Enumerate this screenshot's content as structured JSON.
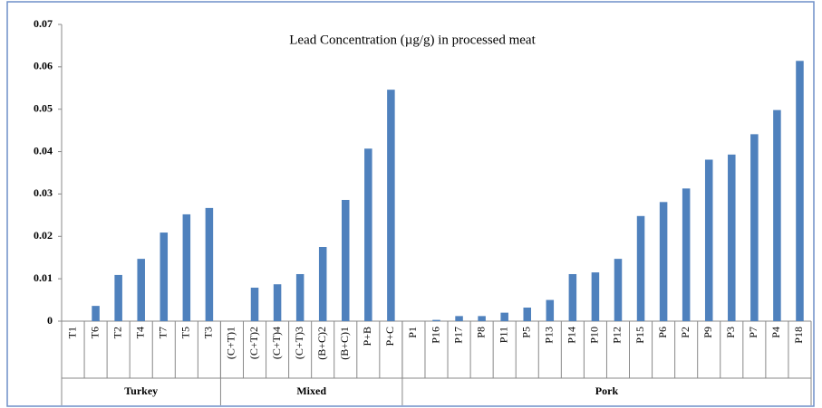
{
  "chart_data": {
    "type": "bar",
    "title": "Lead Concentration (µg/g) in processed meat",
    "color": "#4f81bd",
    "ylim": [
      0,
      0.07
    ],
    "yticks": [
      0,
      0.01,
      0.02,
      0.03,
      0.04,
      0.05,
      0.06,
      0.07
    ],
    "groups": [
      {
        "name": "Turkey",
        "categories": [
          "T1",
          "T6",
          "T2",
          "T4",
          "T7",
          "T5",
          "T3"
        ],
        "values": [
          0,
          0.0036,
          0.0109,
          0.0147,
          0.0209,
          0.0252,
          0.0267
        ]
      },
      {
        "name": "Mixed",
        "categories": [
          "(C+T)1",
          "(C+T)2",
          "(C+T)4",
          "(C+T)3",
          "(B+C)2",
          "(B+C)1",
          "P+B",
          "P+C"
        ],
        "values": [
          0,
          0.0079,
          0.0087,
          0.0111,
          0.0175,
          0.0286,
          0.0407,
          0.0546
        ]
      },
      {
        "name": "Pork",
        "categories": [
          "P1",
          "P16",
          "P17",
          "P8",
          "P11",
          "P5",
          "P13",
          "P14",
          "P10",
          "P12",
          "P15",
          "P6",
          "P2",
          "P9",
          "P3",
          "P7",
          "P4",
          "P18"
        ],
        "values": [
          0,
          0.0003,
          0.0012,
          0.0012,
          0.002,
          0.0032,
          0.005,
          0.0111,
          0.0115,
          0.0147,
          0.0248,
          0.0281,
          0.0313,
          0.0381,
          0.0393,
          0.0441,
          0.0498,
          0.0614
        ]
      }
    ]
  }
}
